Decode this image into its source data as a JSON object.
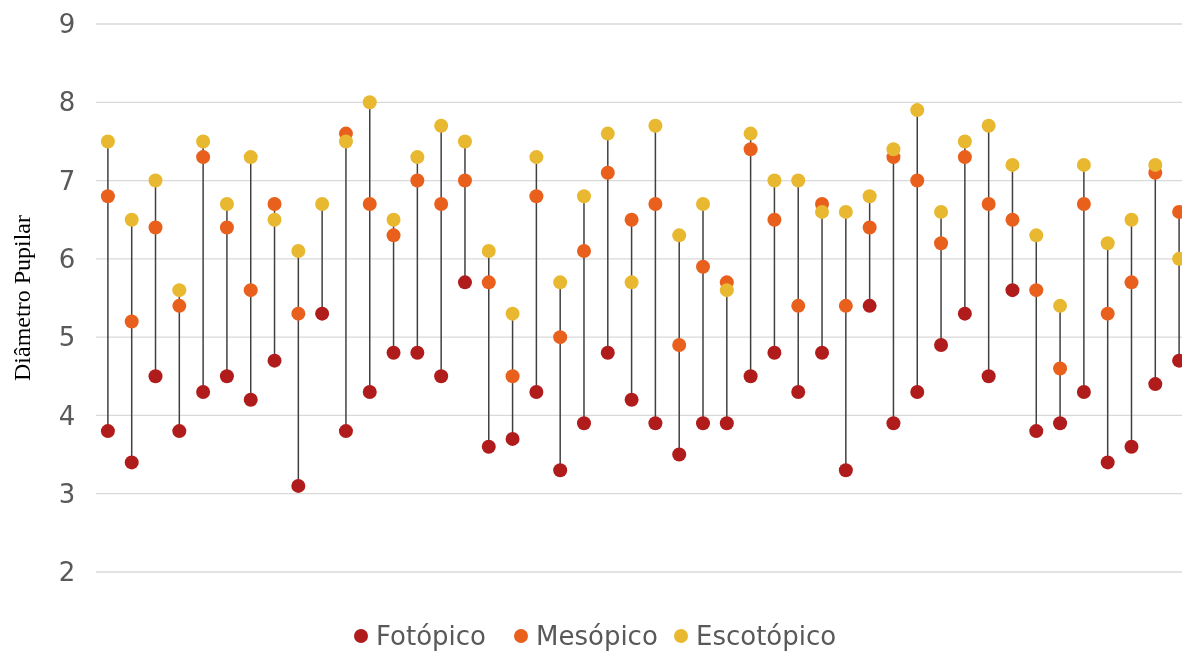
{
  "chart_data": {
    "type": "scatter",
    "ylabel": "Diâmetro Pupilar",
    "categories": [
      null,
      null,
      null,
      null,
      null,
      null,
      null,
      null,
      null,
      null,
      null,
      null,
      null,
      null,
      null,
      null,
      null,
      null,
      null,
      null,
      null,
      null,
      null,
      null,
      null,
      null,
      null,
      null,
      null,
      null,
      null,
      null,
      null,
      null,
      null,
      null,
      null,
      null,
      null,
      null,
      null,
      null,
      null,
      null,
      null,
      null
    ],
    "series": [
      {
        "name": "Fotópico",
        "color": "#b01c1c",
        "values": [
          3.8,
          3.4,
          4.5,
          3.8,
          4.3,
          4.5,
          4.2,
          4.7,
          3.1,
          5.3,
          3.8,
          4.3,
          4.8,
          4.8,
          4.5,
          5.7,
          3.6,
          3.7,
          4.3,
          3.3,
          3.9,
          4.8,
          4.2,
          3.9,
          3.5,
          3.9,
          3.9,
          4.5,
          4.8,
          4.3,
          4.8,
          3.3,
          5.4,
          3.9,
          4.3,
          4.9,
          5.3,
          4.5,
          5.6,
          3.8,
          3.9,
          4.3,
          3.4,
          3.6,
          4.4,
          4.7
        ]
      },
      {
        "name": "Mesópico",
        "color": "#e8601c",
        "values": [
          6.8,
          5.2,
          6.4,
          5.4,
          7.3,
          6.4,
          5.6,
          6.7,
          5.3,
          null,
          7.6,
          6.7,
          6.3,
          7.0,
          6.7,
          7.0,
          5.7,
          4.5,
          6.8,
          5.0,
          6.1,
          7.1,
          6.5,
          6.7,
          4.9,
          5.9,
          5.7,
          7.4,
          6.5,
          5.4,
          6.7,
          5.4,
          6.4,
          7.3,
          7.0,
          6.2,
          7.3,
          6.7,
          6.5,
          5.6,
          4.6,
          6.7,
          5.3,
          5.7,
          7.1,
          6.6
        ]
      },
      {
        "name": "Escotópico",
        "color": "#e8b830",
        "values": [
          7.5,
          6.5,
          7.0,
          5.6,
          7.5,
          6.7,
          7.3,
          6.5,
          6.1,
          6.7,
          7.5,
          8.0,
          6.5,
          7.3,
          7.7,
          7.5,
          6.1,
          5.3,
          7.3,
          5.7,
          6.8,
          7.6,
          5.7,
          7.7,
          6.3,
          6.7,
          5.6,
          7.6,
          7.0,
          7.0,
          6.6,
          6.6,
          6.8,
          7.4,
          7.9,
          6.6,
          7.5,
          7.7,
          7.2,
          6.3,
          5.4,
          7.2,
          6.2,
          6.5,
          7.2,
          6.0
        ]
      }
    ],
    "ylim": [
      2,
      9
    ],
    "yticks": [
      2,
      3,
      4,
      5,
      6,
      7,
      8,
      9
    ],
    "grid": "y",
    "legend": "bottom",
    "marker": "circle"
  }
}
